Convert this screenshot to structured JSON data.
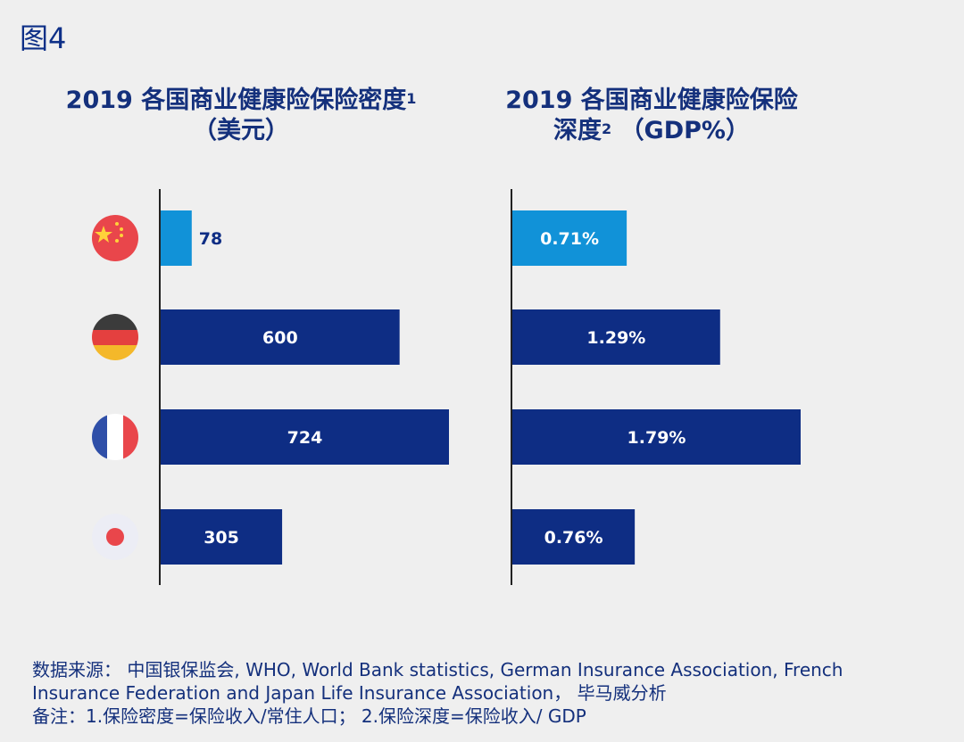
{
  "figure_label": "图4",
  "chart_data": [
    {
      "type": "bar",
      "orientation": "horizontal",
      "title": "2019 各国商业健康险保险密度",
      "title_sup": "1",
      "title_line2": "（美元）",
      "categories": [
        "China",
        "Germany",
        "France",
        "Japan"
      ],
      "values": [
        78,
        600,
        724,
        305
      ],
      "value_labels": [
        "78",
        "600",
        "724",
        "305"
      ],
      "xlim": [
        0,
        724
      ],
      "highlight_color": "#1192d8",
      "bar_color": "#0e2d84"
    },
    {
      "type": "bar",
      "orientation": "horizontal",
      "title": "2019 各国商业健康险保险",
      "title_line2": "深度",
      "title_sup": "2",
      "title_unit": "（GDP%）",
      "categories": [
        "China",
        "Germany",
        "France",
        "Japan"
      ],
      "values": [
        0.71,
        1.29,
        1.79,
        0.76
      ],
      "value_labels": [
        "0.71%",
        "1.29%",
        "1.79%",
        "0.76%"
      ],
      "xlim": [
        0,
        1.79
      ],
      "highlight_color": "#1192d8",
      "bar_color": "#0e2d84"
    }
  ],
  "footer": {
    "source_line1": "数据来源： 中国银保监会, WHO, World Bank statistics, German Insurance Association, French",
    "source_line2": "Insurance Federation and Japan Life Insurance Association， 毕马威分析",
    "note": "备注：1.保险密度=保险收入/常住人口； 2.保险深度=保险收入/ GDP"
  }
}
